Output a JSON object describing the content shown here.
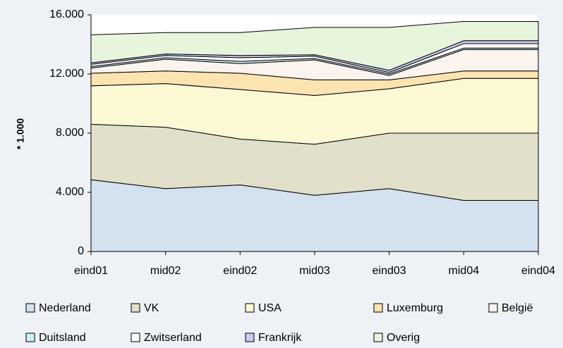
{
  "chart_data": {
    "type": "stacked_area",
    "y_label": "* 1.000",
    "categories": [
      "eind01",
      "mid02",
      "eind02",
      "mid03",
      "eind03",
      "mid04",
      "eind04"
    ],
    "ylim": [
      0,
      16000
    ],
    "yticks": [
      0,
      {
        "value": 4000,
        "label": "4.000"
      },
      {
        "value": 8000,
        "label": "8.000"
      },
      {
        "value": 12000,
        "label": "12.000"
      },
      {
        "value": 16000,
        "label": "16.000"
      }
    ],
    "series": [
      {
        "name": "Nederland",
        "color": "#d4e1ef",
        "values": [
          4850,
          4250,
          4500,
          3800,
          4250,
          3450,
          3450
        ]
      },
      {
        "name": "VK",
        "color": "#e2e0ca",
        "values": [
          3750,
          4150,
          3100,
          3450,
          3750,
          4550,
          4550
        ]
      },
      {
        "name": "USA",
        "color": "#fcf8d4",
        "values": [
          2600,
          2950,
          3350,
          3300,
          3000,
          3700,
          3700
        ]
      },
      {
        "name": "Luxemburg",
        "color": "#fce4b2",
        "values": [
          850,
          850,
          1100,
          1050,
          600,
          500,
          500
        ]
      },
      {
        "name": "België",
        "color": "#fbf3ee",
        "values": [
          350,
          800,
          650,
          1350,
          300,
          1450,
          1450
        ]
      },
      {
        "name": "Duitsland",
        "color": "#ccf0fb",
        "values": [
          100,
          100,
          150,
          100,
          100,
          100,
          100
        ]
      },
      {
        "name": "Zwitserland",
        "color": "#ffffff",
        "values": [
          150,
          150,
          250,
          150,
          100,
          300,
          300
        ]
      },
      {
        "name": "Frankrijk",
        "color": "#c8c8f0",
        "values": [
          100,
          100,
          150,
          100,
          150,
          200,
          200
        ]
      },
      {
        "name": "Overig",
        "color": "#e6f5dc",
        "values": [
          1900,
          1450,
          1550,
          1850,
          2900,
          1300,
          1300
        ]
      }
    ]
  }
}
